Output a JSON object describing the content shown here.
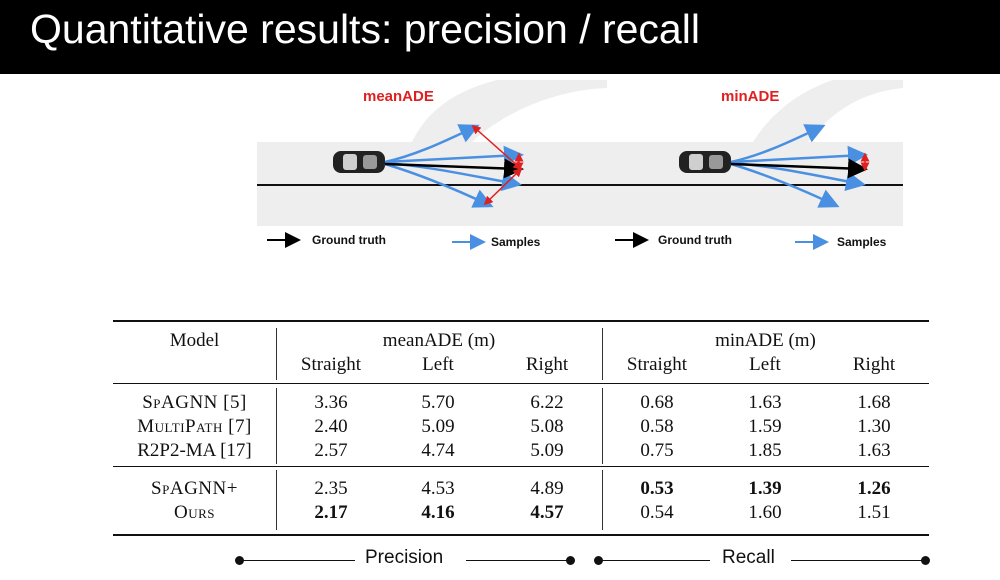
{
  "slide": {
    "title": "Quantitative results: precision / recall"
  },
  "diagrams": {
    "left": {
      "label": "meanADE",
      "legend_gt": "Ground truth",
      "legend_samples": "Samples"
    },
    "right": {
      "label": "minADE",
      "legend_gt": "Ground truth",
      "legend_samples": "Samples"
    },
    "colors": {
      "samples": "#4a90e2",
      "ground_truth": "#000000",
      "error": "#e02020",
      "road": "#eeeeee"
    }
  },
  "table": {
    "model_header": "Model",
    "group_headers": [
      "meanADE (m)",
      "minADE (m)"
    ],
    "sub_headers": [
      "Straight",
      "Left",
      "Right",
      "Straight",
      "Left",
      "Right"
    ],
    "rows": [
      {
        "model": "SpAGNN [5]",
        "values": [
          "3.36",
          "5.70",
          "6.22",
          "0.68",
          "1.63",
          "1.68"
        ]
      },
      {
        "model": "MultiPath [7]",
        "values": [
          "2.40",
          "5.09",
          "5.08",
          "0.58",
          "1.59",
          "1.30"
        ]
      },
      {
        "model": "R2P2-MA [17]",
        "values": [
          "2.57",
          "4.74",
          "5.09",
          "0.75",
          "1.85",
          "1.63"
        ]
      },
      {
        "model": "SpAGNN+",
        "values": [
          "2.35",
          "4.53",
          "4.89",
          "0.53",
          "1.39",
          "1.26"
        ]
      },
      {
        "model": "Ours",
        "values": [
          "2.17",
          "4.16",
          "4.57",
          "0.54",
          "1.60",
          "1.51"
        ]
      }
    ]
  },
  "footer": {
    "precision_label": "Precision",
    "recall_label": "Recall"
  }
}
